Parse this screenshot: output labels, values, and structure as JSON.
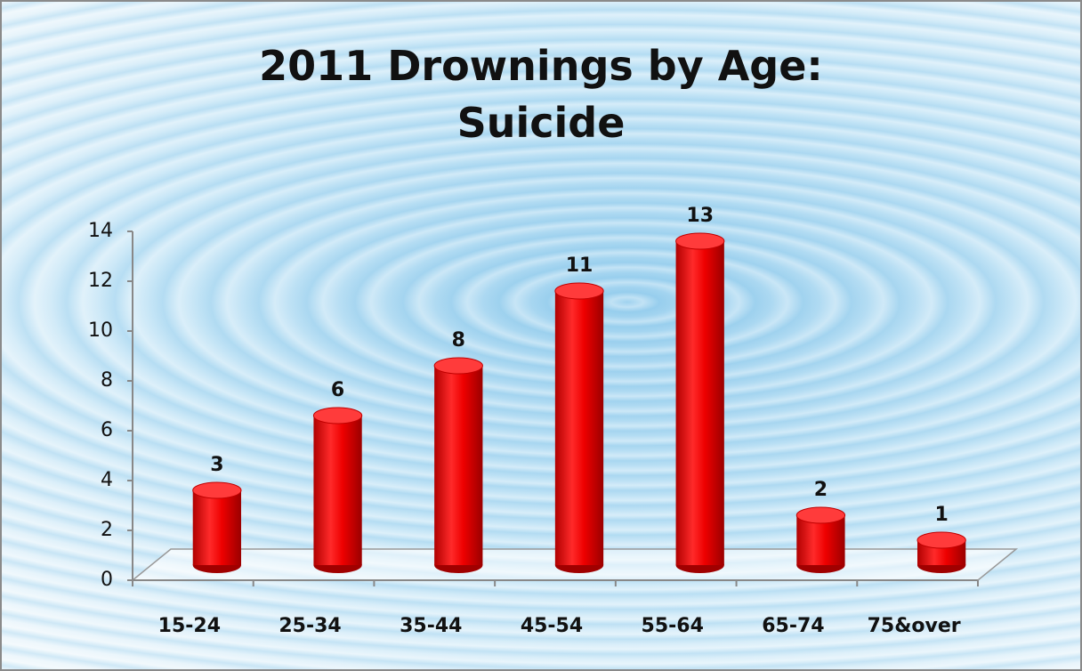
{
  "chart_data": {
    "type": "bar",
    "title": "2011 Drownings by Age: Suicide",
    "categories": [
      "15-24",
      "25-34",
      "35-44",
      "45-54",
      "55-64",
      "65-74",
      "75&over"
    ],
    "values": [
      3,
      6,
      8,
      11,
      13,
      2,
      1
    ],
    "color": "#ee0000",
    "ylim": [
      0,
      14
    ],
    "yticks": [
      0,
      2,
      4,
      6,
      8,
      10,
      12,
      14
    ],
    "grid": false
  }
}
